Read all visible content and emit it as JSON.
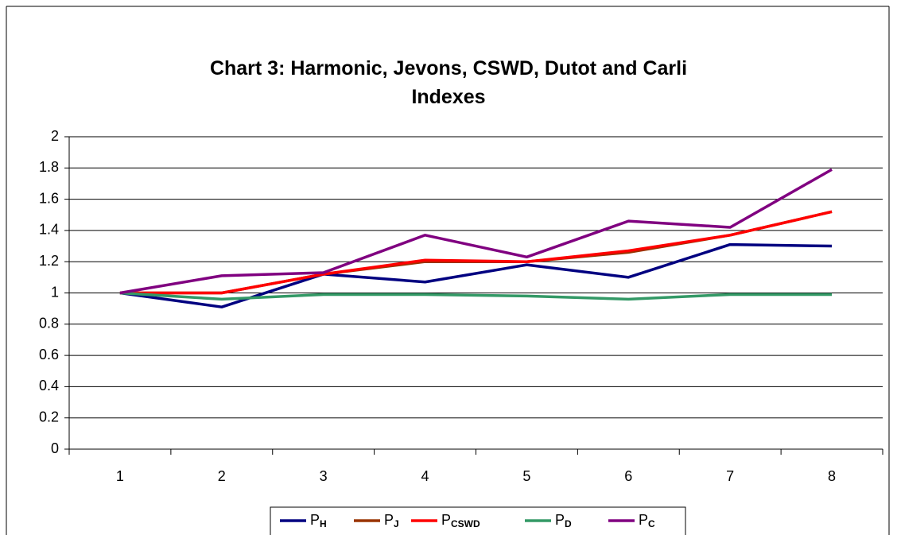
{
  "chart_data": {
    "type": "line",
    "title": "Chart 3: Harmonic, Jevons, CSWD, Dutot and Carli Indexes",
    "categories": [
      "1",
      "2",
      "3",
      "4",
      "5",
      "6",
      "7",
      "8"
    ],
    "series": [
      {
        "name": "PH",
        "color": "#000080",
        "values": [
          1,
          0.91,
          1.12,
          1.07,
          1.18,
          1.1,
          1.31,
          1.3
        ]
      },
      {
        "name": "PJ",
        "color": "#993300",
        "values": [
          1,
          1.0,
          1.12,
          1.2,
          1.2,
          1.26,
          1.37,
          1.52
        ]
      },
      {
        "name": "PCSWD",
        "color": "#ff0000",
        "values": [
          1,
          1.0,
          1.12,
          1.21,
          1.2,
          1.27,
          1.37,
          1.52
        ]
      },
      {
        "name": "PD",
        "color": "#339966",
        "values": [
          1,
          0.96,
          0.99,
          0.99,
          0.98,
          0.96,
          0.99,
          0.99
        ]
      },
      {
        "name": "PC",
        "color": "#800080",
        "values": [
          1,
          1.11,
          1.13,
          1.37,
          1.23,
          1.46,
          1.42,
          1.79
        ]
      }
    ],
    "ylim": [
      0,
      2
    ],
    "yticks": [
      0,
      0.2,
      0.4,
      0.6,
      0.8,
      1,
      1.2,
      1.4,
      1.6,
      1.8,
      2
    ],
    "grid": true,
    "legend": "bottom"
  }
}
